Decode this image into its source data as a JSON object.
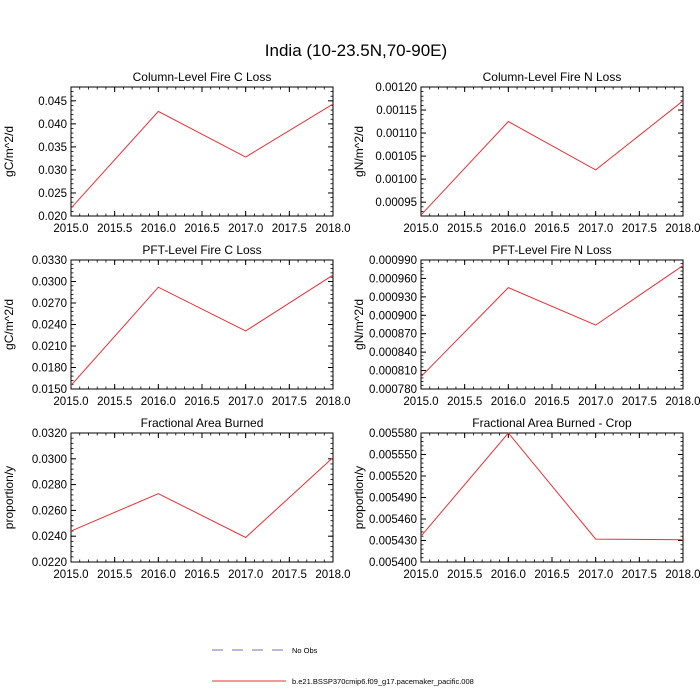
{
  "figure": {
    "title": "India (10-23.5N,70-90E)"
  },
  "legend": {
    "items": [
      {
        "label": "No Obs",
        "color": "#7b6fb0",
        "dashed": true
      },
      {
        "label": "b.e21.BSSP370cmip6.f09_g17.pacemaker_pacific.008",
        "color": "#e8303a",
        "dashed": false
      }
    ]
  },
  "chart_data": [
    {
      "type": "line",
      "title": "Column-Level Fire C Loss",
      "ylabel": "gC/m^2/d",
      "xlim": [
        2015.0,
        2018.0
      ],
      "ylim": [
        0.02,
        0.048
      ],
      "xticks": [
        "2015.0",
        "2015.5",
        "2016.0",
        "2016.5",
        "2017.0",
        "2017.5",
        "2018.0"
      ],
      "yticks": [
        "0.020",
        "0.025",
        "0.030",
        "0.035",
        "0.040",
        "0.045"
      ],
      "series": [
        {
          "x": [
            2015,
            2016,
            2017,
            2018
          ],
          "values": [
            0.0217,
            0.0427,
            0.0328,
            0.0443
          ],
          "color": "#e8303a"
        }
      ]
    },
    {
      "type": "line",
      "title": "Column-Level Fire N Loss",
      "ylabel": "gN/m^2/d",
      "xlim": [
        2015.0,
        2018.0
      ],
      "ylim": [
        0.00092,
        0.0012
      ],
      "xticks": [
        "2015.0",
        "2015.5",
        "2016.0",
        "2016.5",
        "2017.0",
        "2017.5",
        "2018.0"
      ],
      "yticks": [
        "0.00095",
        "0.00100",
        "0.00105",
        "0.00110",
        "0.00115",
        "0.00120"
      ],
      "series": [
        {
          "x": [
            2015,
            2016,
            2017,
            2018
          ],
          "values": [
            0.000922,
            0.001125,
            0.00102,
            0.00117
          ],
          "color": "#e8303a"
        }
      ]
    },
    {
      "type": "line",
      "title": "PFT-Level Fire C Loss",
      "ylabel": "gC/m^2/d",
      "xlim": [
        2015.0,
        2018.0
      ],
      "ylim": [
        0.015,
        0.033
      ],
      "xticks": [
        "2015.0",
        "2015.5",
        "2016.0",
        "2016.5",
        "2017.0",
        "2017.5",
        "2018.0"
      ],
      "yticks": [
        "0.0150",
        "0.0180",
        "0.0210",
        "0.0240",
        "0.0270",
        "0.0300",
        "0.0330"
      ],
      "series": [
        {
          "x": [
            2015,
            2016,
            2017,
            2018
          ],
          "values": [
            0.0155,
            0.0292,
            0.0231,
            0.0309
          ],
          "color": "#e8303a"
        }
      ]
    },
    {
      "type": "line",
      "title": "PFT-Level Fire N Loss",
      "ylabel": "gN/m^2/d",
      "xlim": [
        2015.0,
        2018.0
      ],
      "ylim": [
        0.00078,
        0.00099
      ],
      "xticks": [
        "2015.0",
        "2015.5",
        "2016.0",
        "2016.5",
        "2017.0",
        "2017.5",
        "2018.0"
      ],
      "yticks": [
        "0.000780",
        "0.000810",
        "0.000840",
        "0.000870",
        "0.000900",
        "0.000930",
        "0.000960",
        "0.000990"
      ],
      "series": [
        {
          "x": [
            2015,
            2016,
            2017,
            2018
          ],
          "values": [
            0.0008,
            0.000945,
            0.000884,
            0.000981
          ],
          "color": "#e8303a"
        }
      ]
    },
    {
      "type": "line",
      "title": "Fractional Area Burned",
      "ylabel": "proportion/y",
      "xlim": [
        2015.0,
        2018.0
      ],
      "ylim": [
        0.022,
        0.032
      ],
      "xticks": [
        "2015.0",
        "2015.5",
        "2016.0",
        "2016.5",
        "2017.0",
        "2017.5",
        "2018.0"
      ],
      "yticks": [
        "0.0220",
        "0.0240",
        "0.0260",
        "0.0280",
        "0.0300",
        "0.0320"
      ],
      "series": [
        {
          "x": [
            2015,
            2016,
            2017,
            2018
          ],
          "values": [
            0.0244,
            0.0273,
            0.0239,
            0.0301
          ],
          "color": "#e8303a"
        }
      ]
    },
    {
      "type": "line",
      "title": "Fractional Area Burned - Crop",
      "ylabel": "proportion/y",
      "xlim": [
        2015.0,
        2018.0
      ],
      "ylim": [
        0.0054,
        0.00558
      ],
      "xticks": [
        "2015.0",
        "2015.5",
        "2016.0",
        "2016.5",
        "2017.0",
        "2017.5",
        "2018.0"
      ],
      "yticks": [
        "0.005400",
        "0.005430",
        "0.005460",
        "0.005490",
        "0.005520",
        "0.005550",
        "0.005580"
      ],
      "series": [
        {
          "x": [
            2015,
            2016,
            2017,
            2018
          ],
          "values": [
            0.005436,
            0.00558,
            0.005432,
            0.005431
          ],
          "color": "#e8303a"
        }
      ]
    }
  ]
}
